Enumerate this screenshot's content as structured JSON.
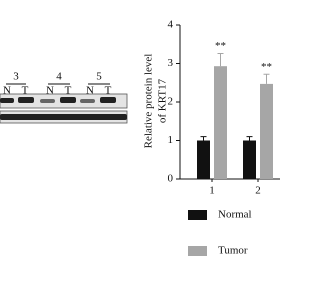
{
  "blot": {
    "groups": [
      "3",
      "4",
      "5"
    ],
    "lanes": [
      "N",
      "T"
    ]
  },
  "chart_data": {
    "type": "bar",
    "ylabel": [
      "Relative protein level",
      "of KRT17"
    ],
    "categories": [
      "1",
      "2"
    ],
    "series": [
      {
        "name": "Normal",
        "color": "#111111",
        "values": [
          1.0,
          1.0
        ],
        "errors": [
          0.1,
          0.1
        ]
      },
      {
        "name": "Tumor",
        "color": "#a6a6a6",
        "values": [
          2.93,
          2.47
        ],
        "errors": [
          0.33,
          0.25
        ]
      }
    ],
    "annotations": [
      "**",
      "**"
    ],
    "ylim": [
      0,
      4
    ],
    "yticks": [
      0,
      1,
      2,
      3,
      4
    ],
    "grid": false
  }
}
